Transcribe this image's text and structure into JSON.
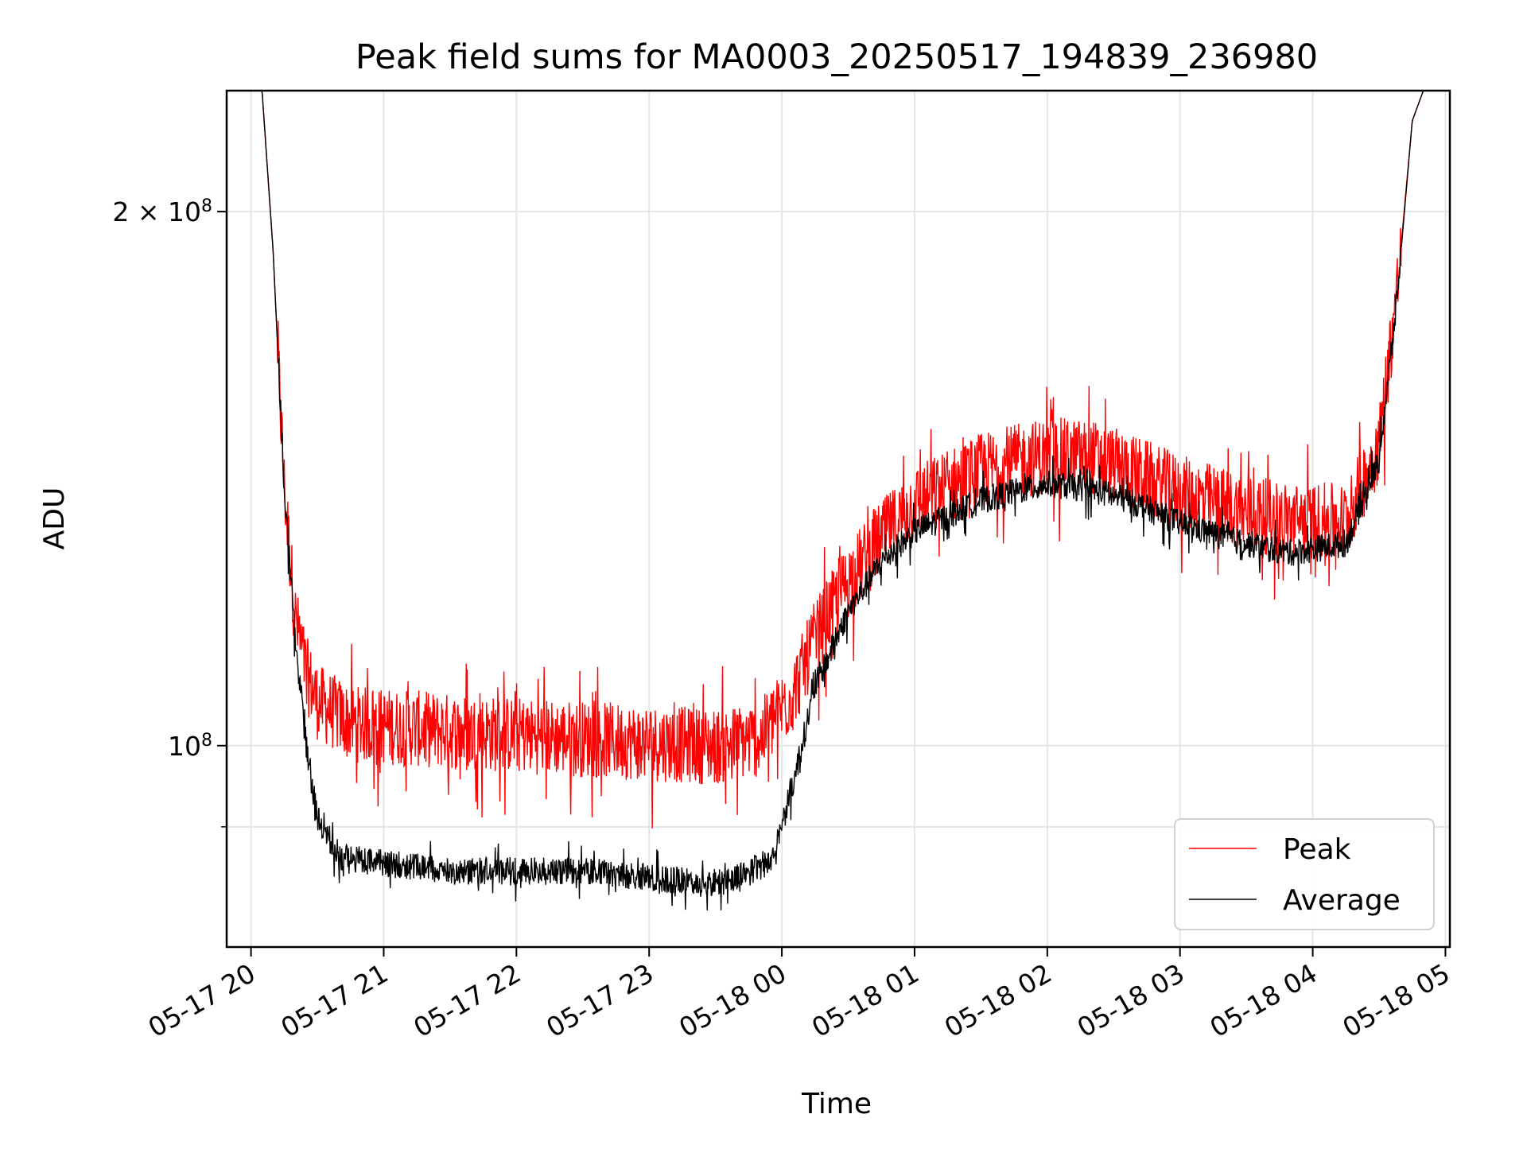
{
  "chart_data": {
    "type": "line",
    "title": "Peak field sums for MA0003_20250517_194839_236980",
    "xlabel": "Time",
    "ylabel": "ADU",
    "xscale": "time",
    "yscale": "log",
    "xlim": [
      "2025-05-17T19:49",
      "2025-05-18T05:02"
    ],
    "ylim": [
      77000000,
      234000000
    ],
    "grid": true,
    "legend_position": "lower-right",
    "x_ticks": [
      {
        "value": "2025-05-17T20:00",
        "label": "05-17 20"
      },
      {
        "value": "2025-05-17T21:00",
        "label": "05-17 21"
      },
      {
        "value": "2025-05-17T22:00",
        "label": "05-17 22"
      },
      {
        "value": "2025-05-17T23:00",
        "label": "05-17 23"
      },
      {
        "value": "2025-05-18T00:00",
        "label": "05-18 00"
      },
      {
        "value": "2025-05-18T01:00",
        "label": "05-18 01"
      },
      {
        "value": "2025-05-18T02:00",
        "label": "05-18 02"
      },
      {
        "value": "2025-05-18T03:00",
        "label": "05-18 03"
      },
      {
        "value": "2025-05-18T04:00",
        "label": "05-18 04"
      },
      {
        "value": "2025-05-18T05:00",
        "label": "05-18 05"
      }
    ],
    "y_major_ticks": [
      {
        "value": 100000000,
        "base": "10",
        "exp": "8",
        "mantissa": ""
      },
      {
        "value": 200000000,
        "base": "10",
        "exp": "8",
        "mantissa": "2 × "
      }
    ],
    "y_minor_ticks": [
      90000000
    ],
    "series": [
      {
        "name": "Peak",
        "color": "#ff0000",
        "noise_amplitude_fraction": 0.05,
        "points": [
          {
            "x": "2025-05-17T19:49",
            "y": 234000000
          },
          {
            "x": "2025-05-17T20:05",
            "y": 234000000
          },
          {
            "x": "2025-05-17T20:10",
            "y": 190000000
          },
          {
            "x": "2025-05-17T20:15",
            "y": 140000000
          },
          {
            "x": "2025-05-17T20:20",
            "y": 118000000
          },
          {
            "x": "2025-05-17T20:25",
            "y": 110000000
          },
          {
            "x": "2025-05-17T20:30",
            "y": 106000000
          },
          {
            "x": "2025-05-17T20:45",
            "y": 103000000
          },
          {
            "x": "2025-05-17T21:30",
            "y": 102000000
          },
          {
            "x": "2025-05-17T22:30",
            "y": 101000000
          },
          {
            "x": "2025-05-17T23:30",
            "y": 100000000
          },
          {
            "x": "2025-05-17T23:50",
            "y": 101000000
          },
          {
            "x": "2025-05-18T00:05",
            "y": 107000000
          },
          {
            "x": "2025-05-18T00:15",
            "y": 115000000
          },
          {
            "x": "2025-05-18T00:30",
            "y": 124000000
          },
          {
            "x": "2025-05-18T00:45",
            "y": 131000000
          },
          {
            "x": "2025-05-18T01:00",
            "y": 137000000
          },
          {
            "x": "2025-05-18T01:30",
            "y": 143000000
          },
          {
            "x": "2025-05-18T02:00",
            "y": 146000000
          },
          {
            "x": "2025-05-18T02:20",
            "y": 145500000
          },
          {
            "x": "2025-05-18T02:40",
            "y": 142500000
          },
          {
            "x": "2025-05-18T03:00",
            "y": 139000000
          },
          {
            "x": "2025-05-18T03:30",
            "y": 135500000
          },
          {
            "x": "2025-05-18T03:50",
            "y": 134000000
          },
          {
            "x": "2025-05-18T04:15",
            "y": 134000000
          },
          {
            "x": "2025-05-18T04:30",
            "y": 148000000
          },
          {
            "x": "2025-05-18T04:38",
            "y": 180000000
          },
          {
            "x": "2025-05-18T04:45",
            "y": 225000000
          },
          {
            "x": "2025-05-18T04:50",
            "y": 234000000
          },
          {
            "x": "2025-05-18T05:02",
            "y": 234000000
          }
        ]
      },
      {
        "name": "Average",
        "color": "#000000",
        "noise_amplitude_fraction": 0.018,
        "points": [
          {
            "x": "2025-05-17T19:49",
            "y": 234000000
          },
          {
            "x": "2025-05-17T20:05",
            "y": 234000000
          },
          {
            "x": "2025-05-17T20:10",
            "y": 190000000
          },
          {
            "x": "2025-05-17T20:15",
            "y": 140000000
          },
          {
            "x": "2025-05-17T20:20",
            "y": 115000000
          },
          {
            "x": "2025-05-17T20:25",
            "y": 100000000
          },
          {
            "x": "2025-05-17T20:30",
            "y": 91000000
          },
          {
            "x": "2025-05-17T20:40",
            "y": 86500000
          },
          {
            "x": "2025-05-17T21:30",
            "y": 85000000
          },
          {
            "x": "2025-05-17T22:30",
            "y": 85000000
          },
          {
            "x": "2025-05-17T23:30",
            "y": 83500000
          },
          {
            "x": "2025-05-17T23:55",
            "y": 86000000
          },
          {
            "x": "2025-05-18T00:05",
            "y": 95000000
          },
          {
            "x": "2025-05-18T00:15",
            "y": 108000000
          },
          {
            "x": "2025-05-18T00:30",
            "y": 119000000
          },
          {
            "x": "2025-05-18T00:45",
            "y": 127000000
          },
          {
            "x": "2025-05-18T01:00",
            "y": 132000000
          },
          {
            "x": "2025-05-18T01:30",
            "y": 137500000
          },
          {
            "x": "2025-05-18T02:00",
            "y": 140500000
          },
          {
            "x": "2025-05-18T02:20",
            "y": 139500000
          },
          {
            "x": "2025-05-18T02:40",
            "y": 137000000
          },
          {
            "x": "2025-05-18T03:00",
            "y": 133500000
          },
          {
            "x": "2025-05-18T03:30",
            "y": 130000000
          },
          {
            "x": "2025-05-18T03:50",
            "y": 128500000
          },
          {
            "x": "2025-05-18T04:15",
            "y": 130000000
          },
          {
            "x": "2025-05-18T04:30",
            "y": 145000000
          },
          {
            "x": "2025-05-18T04:38",
            "y": 178000000
          },
          {
            "x": "2025-05-18T04:45",
            "y": 225000000
          },
          {
            "x": "2025-05-18T04:50",
            "y": 234000000
          },
          {
            "x": "2025-05-18T05:02",
            "y": 234000000
          }
        ]
      }
    ]
  }
}
